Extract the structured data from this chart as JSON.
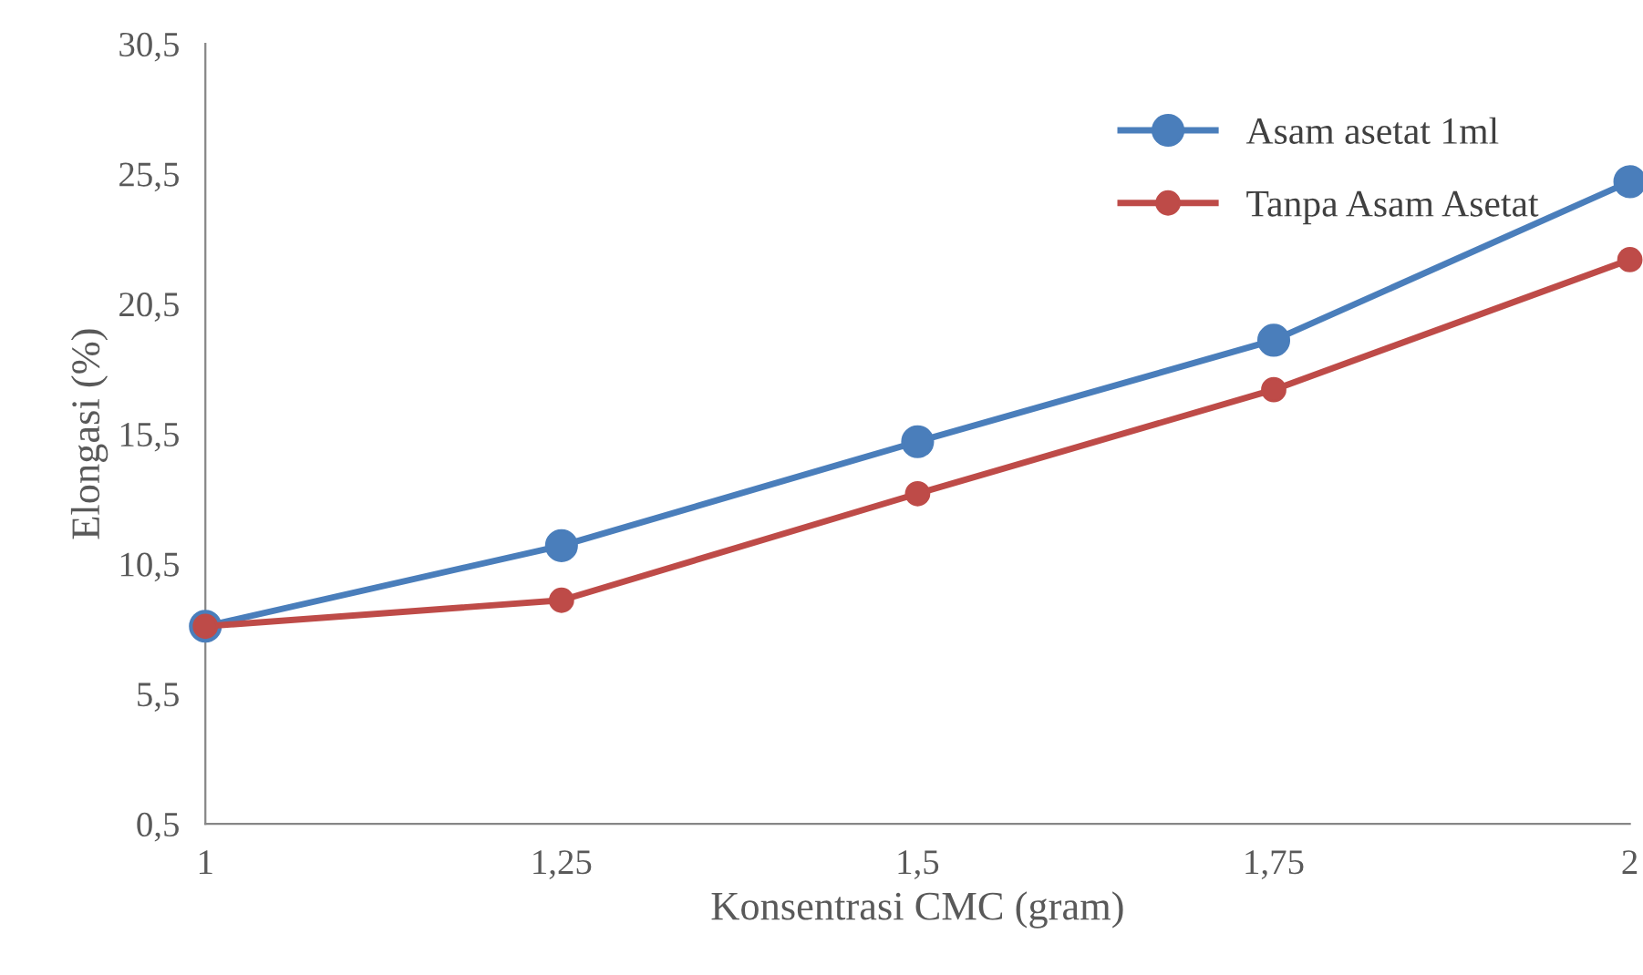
{
  "chart_data": {
    "type": "line",
    "xlabel": "Konsentrasi CMC (gram)",
    "ylabel": "Elongasi (%)",
    "x": [
      1,
      1.25,
      1.5,
      1.75,
      2
    ],
    "series": [
      {
        "name": "Asam asetat 1ml",
        "color": "#4a7ebb",
        "values": [
          8.1,
          11.2,
          15.2,
          19.1,
          25.2
        ]
      },
      {
        "name": "Tanpa Asam Asetat",
        "color": "#be4b48",
        "values": [
          8.1,
          9.1,
          13.2,
          17.2,
          22.2
        ]
      }
    ],
    "xlim": [
      1,
      2
    ],
    "xticks": [
      1,
      {
        "value": 1.25,
        "label": "1,25"
      },
      {
        "value": 1.5,
        "label": "1,5"
      },
      {
        "value": 1.75,
        "label": "1,75"
      },
      2
    ],
    "ylim": [
      0.5,
      30.5
    ],
    "yticks": [
      {
        "value": 0.5,
        "label": "0,5"
      },
      {
        "value": 5.5,
        "label": "5,5"
      },
      {
        "value": 10.5,
        "label": "10,5"
      },
      {
        "value": 15.5,
        "label": "15,5"
      },
      {
        "value": 20.5,
        "label": "20,5"
      },
      {
        "value": 25.5,
        "label": "25,5"
      },
      {
        "value": 30.5,
        "label": "30,5"
      }
    ],
    "grid": false,
    "legend": "top right",
    "marker": "circle",
    "line_style": "solid"
  }
}
